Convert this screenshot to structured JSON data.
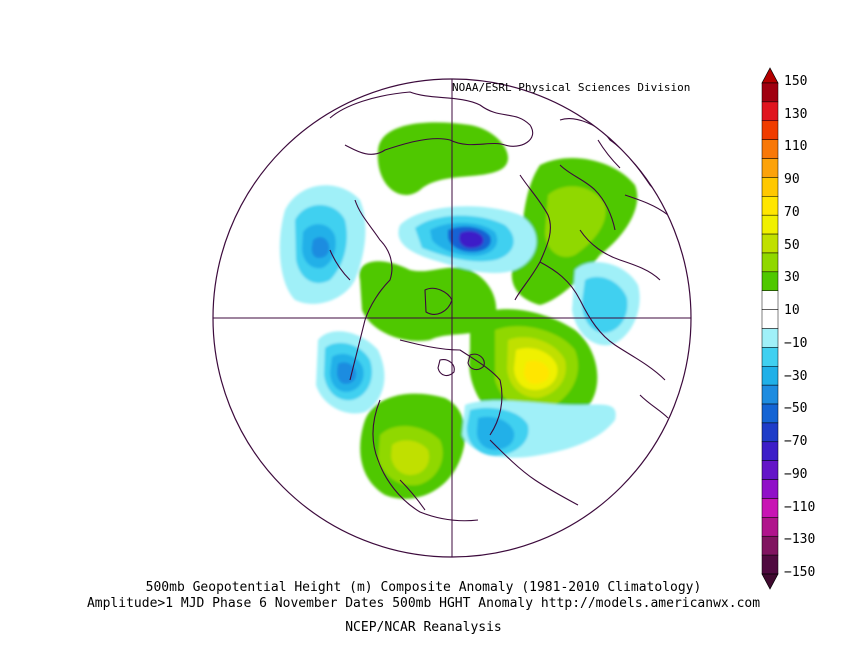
{
  "credit": "NOAA/ESRL Physical Sciences Division",
  "caption_line1": "500mb Geopotential Height (m) Composite Anomaly (1981-2010 Climatology)",
  "caption_line2": "Amplitude>1 MJD Phase 6 November Dates 500mb HGHT Anomaly http://models.americanwx.com",
  "caption_line3": "NCEP/NCAR Reanalysis",
  "colorbar": {
    "labels": [
      "150",
      "130",
      "110",
      "90",
      "70",
      "50",
      "30",
      "10",
      "−10",
      "−30",
      "−50",
      "−70",
      "−90",
      "−110",
      "−130",
      "−150"
    ],
    "colors": [
      "#a00010",
      "#e0141e",
      "#f03c00",
      "#f87808",
      "#fca20a",
      "#ffc800",
      "#ffe600",
      "#f0f000",
      "#c0e000",
      "#90d800",
      "#50c800",
      "#ffffff",
      "#ffffff",
      "#a0f0f8",
      "#40d0f0",
      "#20b0e8",
      "#1e8ce0",
      "#1464d4",
      "#1e3cc8",
      "#3c1ec8",
      "#6414c8",
      "#9010c8",
      "#c814b4",
      "#b0148c",
      "#801460",
      "#500a40"
    ],
    "top_color": "#b40000",
    "bottom_color": "#400a30"
  }
}
